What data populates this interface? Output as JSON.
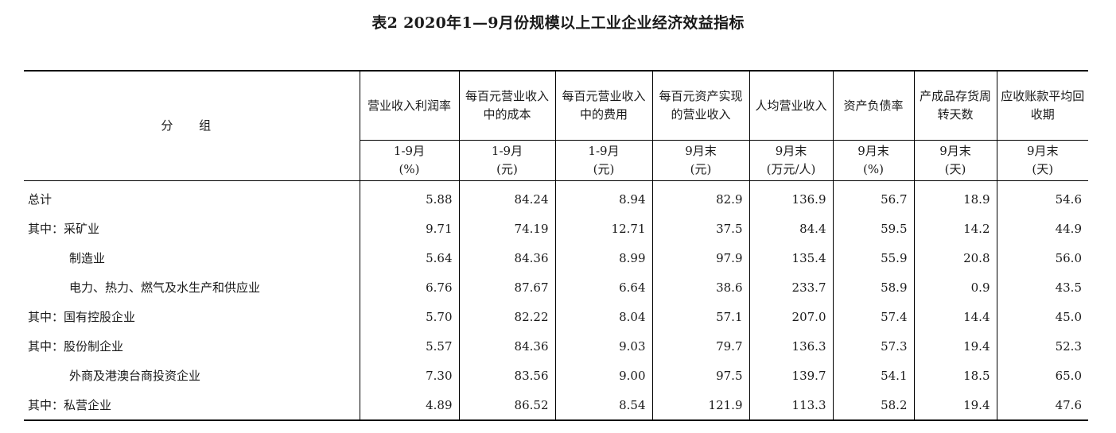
{
  "title": "表2  2020年1—9月份规模以上工业企业经济效益指标",
  "header": {
    "group_label": "分  组",
    "columns": [
      {
        "name": "营业收入利润率",
        "period": "1-9月",
        "unit": "(%)"
      },
      {
        "name": "每百元营业收入中的成本",
        "period": "1-9月",
        "unit": "(元)"
      },
      {
        "name": "每百元营业收入中的费用",
        "period": "1-9月",
        "unit": "(元)"
      },
      {
        "name": "每百元资产实现的营业收入",
        "period": "9月末",
        "unit": "(元)"
      },
      {
        "name": "人均营业收入",
        "period": "9月末",
        "unit": "(万元/人)"
      },
      {
        "name": "资产负债率",
        "period": "9月末",
        "unit": "(%)"
      },
      {
        "name": "产成品存货周转天数",
        "period": "9月末",
        "unit": "(天)"
      },
      {
        "name": "应收账款平均回收期",
        "period": "9月末",
        "unit": "(天)"
      }
    ]
  },
  "rows": [
    {
      "prefix": "",
      "label": "总计",
      "values": [
        "5.88",
        "84.24",
        "8.94",
        "82.9",
        "136.9",
        "56.7",
        "18.9",
        "54.6"
      ]
    },
    {
      "prefix": "其中：",
      "label": "采矿业",
      "values": [
        "9.71",
        "74.19",
        "12.71",
        "37.5",
        "84.4",
        "59.5",
        "14.2",
        "44.9"
      ]
    },
    {
      "prefix": "",
      "label": "制造业",
      "values": [
        "5.64",
        "84.36",
        "8.99",
        "97.9",
        "135.4",
        "55.9",
        "20.8",
        "56.0"
      ]
    },
    {
      "prefix": "",
      "label": "电力、热力、燃气及水生产和供应业",
      "values": [
        "6.76",
        "87.67",
        "6.64",
        "38.6",
        "233.7",
        "58.9",
        "0.9",
        "43.5"
      ]
    },
    {
      "prefix": "其中：",
      "label": "国有控股企业",
      "values": [
        "5.70",
        "82.22",
        "8.04",
        "57.1",
        "207.0",
        "57.4",
        "14.4",
        "45.0"
      ]
    },
    {
      "prefix": "其中：",
      "label": "股份制企业",
      "values": [
        "5.57",
        "84.36",
        "9.03",
        "79.7",
        "136.3",
        "57.3",
        "19.4",
        "52.3"
      ]
    },
    {
      "prefix": "",
      "label": "外商及港澳台商投资企业",
      "values": [
        "7.30",
        "83.56",
        "9.00",
        "97.5",
        "139.7",
        "54.1",
        "18.5",
        "65.0"
      ]
    },
    {
      "prefix": "其中：",
      "label": "私营企业",
      "values": [
        "4.89",
        "86.52",
        "8.54",
        "121.9",
        "113.3",
        "58.2",
        "19.4",
        "47.6"
      ]
    }
  ]
}
